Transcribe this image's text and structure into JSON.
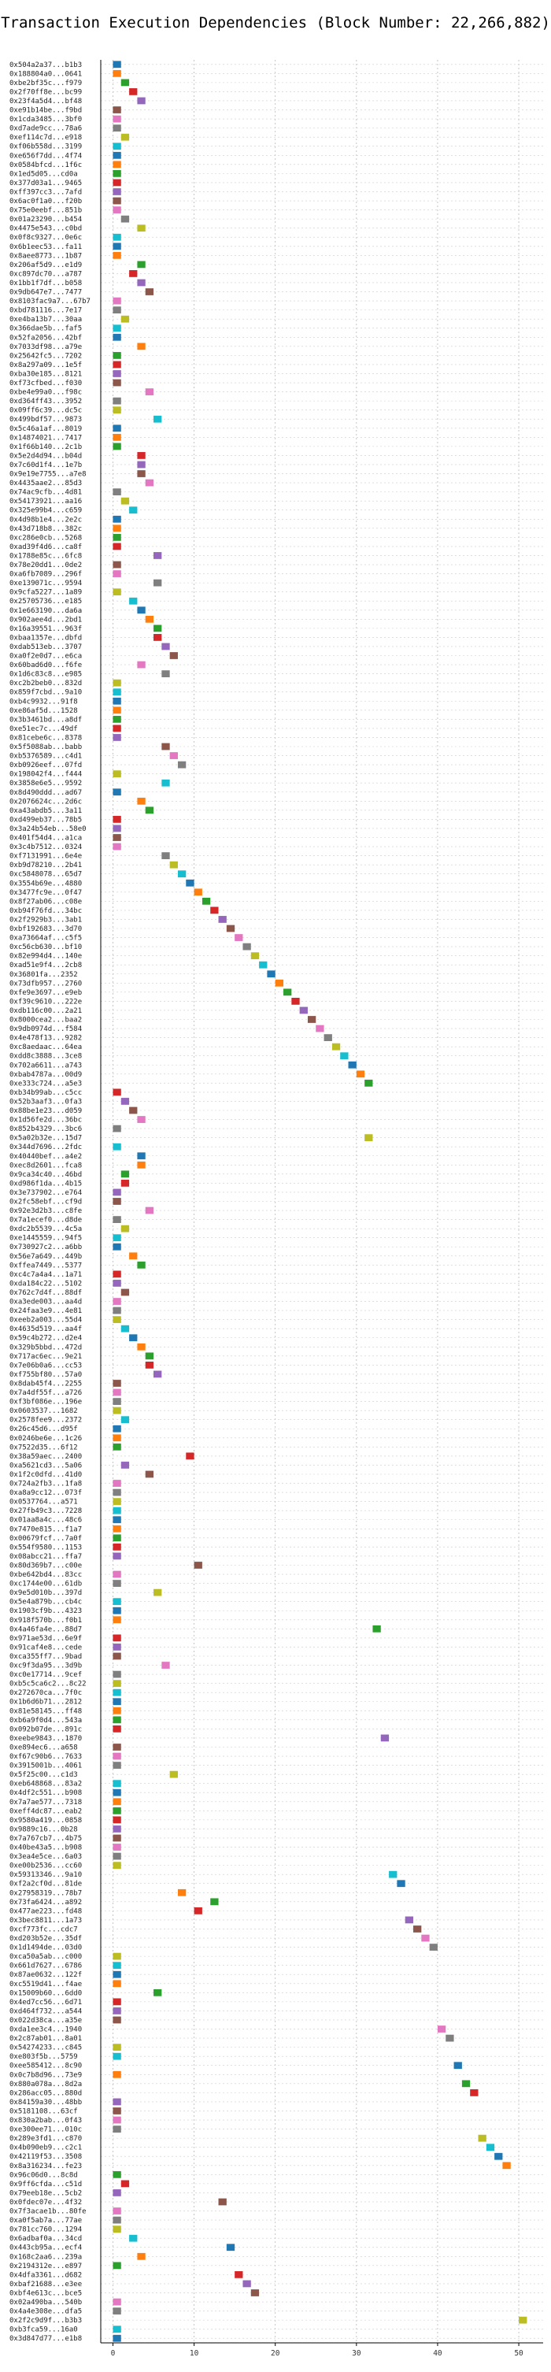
{
  "chart_data": {
    "type": "bar",
    "title": "Transaction Execution Dependencies (Block Number: 22,266,882)",
    "xlabel": "",
    "ylabel": "",
    "xlim": [
      -1.5,
      53
    ],
    "xticks": [
      0,
      10,
      20,
      30,
      40,
      50
    ],
    "grid": true,
    "colors": [
      "#1f77b4",
      "#ff7f0e",
      "#2ca02c",
      "#d62728",
      "#9467bd",
      "#8c564b",
      "#e377c2",
      "#7f7f7f",
      "#bcbd22",
      "#17becf"
    ],
    "transactions": [
      {
        "hash": "0x504a2a37...b1b3",
        "start": 0
      },
      {
        "hash": "0x188804a0...0641",
        "start": 0
      },
      {
        "hash": "0xbe2bf35c...f979",
        "start": 1
      },
      {
        "hash": "0x2f70ff8e...bc99",
        "start": 2
      },
      {
        "hash": "0x23f4a5d4...bf48",
        "start": 3
      },
      {
        "hash": "0xe91b14be...f9bd",
        "start": 0
      },
      {
        "hash": "0x1cda3485...3bf0",
        "start": 0
      },
      {
        "hash": "0xd7ade9cc...78a6",
        "start": 0
      },
      {
        "hash": "0xef114c7d...e918",
        "start": 1
      },
      {
        "hash": "0xf06b558d...3199",
        "start": 0
      },
      {
        "hash": "0xe656f7dd...4f74",
        "start": 0
      },
      {
        "hash": "0x0584bfcd...1f6c",
        "start": 0
      },
      {
        "hash": "0x1ed5d05...cd0a",
        "start": 0
      },
      {
        "hash": "0x377d03a1...9465",
        "start": 0
      },
      {
        "hash": "0xff397cc3...7afd",
        "start": 0
      },
      {
        "hash": "0x6ac0f1a0...f20b",
        "start": 0
      },
      {
        "hash": "0x75e0eebf...851b",
        "start": 0
      },
      {
        "hash": "0x01a23290...b454",
        "start": 1
      },
      {
        "hash": "0x4475e543...c0bd",
        "start": 3
      },
      {
        "hash": "0x0f8c9327...0e6c",
        "start": 0
      },
      {
        "hash": "0x6b1eec53...fa11",
        "start": 0
      },
      {
        "hash": "0x8aee8773...1b87",
        "start": 0
      },
      {
        "hash": "0x206af5d9...e1d9",
        "start": 3
      },
      {
        "hash": "0xc897dc70...a787",
        "start": 2
      },
      {
        "hash": "0x1bb1f7df...b058",
        "start": 3
      },
      {
        "hash": "0x9db647e7...7477",
        "start": 4
      },
      {
        "hash": "0x8103fac9a7...67b7",
        "start": 0
      },
      {
        "hash": "0xbd781116...7e17",
        "start": 0
      },
      {
        "hash": "0xe4ba13b7...30aa",
        "start": 1
      },
      {
        "hash": "0x366dae5b...faf5",
        "start": 0
      },
      {
        "hash": "0x52fa2056...42bf",
        "start": 0
      },
      {
        "hash": "0x7033df98...a79e",
        "start": 3
      },
      {
        "hash": "0x25642fc5...7202",
        "start": 0
      },
      {
        "hash": "0x8a297a09...1e5f",
        "start": 0
      },
      {
        "hash": "0xba30e185...8121",
        "start": 0
      },
      {
        "hash": "0xf73cfbed...f030",
        "start": 0
      },
      {
        "hash": "0xbe4e99a0...f98c",
        "start": 4
      },
      {
        "hash": "0xd364ff43...3952",
        "start": 0
      },
      {
        "hash": "0x09ff6c39...dc5c",
        "start": 0
      },
      {
        "hash": "0x499bdf57...9873",
        "start": 5
      },
      {
        "hash": "0x5c46a1af...8019",
        "start": 0
      },
      {
        "hash": "0x14874021...7417",
        "start": 0
      },
      {
        "hash": "0x1f66b140...2c1b",
        "start": 0
      },
      {
        "hash": "0x5e2d4d94...b04d",
        "start": 3
      },
      {
        "hash": "0x7c60d1f4...1e7b",
        "start": 3
      },
      {
        "hash": "0x9e19e7755...a7e8",
        "start": 3
      },
      {
        "hash": "0x4435aae2...85d3",
        "start": 4
      },
      {
        "hash": "0x74ac9cfb...4d81",
        "start": 0
      },
      {
        "hash": "0x54173921...aa16",
        "start": 1
      },
      {
        "hash": "0x325e99b4...c659",
        "start": 2
      },
      {
        "hash": "0x4d98b1e4...2e2c",
        "start": 0
      },
      {
        "hash": "0x43d718b8...382c",
        "start": 0
      },
      {
        "hash": "0xc286e0cb...5268",
        "start": 0
      },
      {
        "hash": "0xad39f4d6...ca8f",
        "start": 0
      },
      {
        "hash": "0x1788e85c...6fc8",
        "start": 5
      },
      {
        "hash": "0x78e20dd1...0de2",
        "start": 0
      },
      {
        "hash": "0xa6fb7089...296f",
        "start": 0
      },
      {
        "hash": "0xe139071c...9594",
        "start": 5
      },
      {
        "hash": "0x9cfa5227...1a89",
        "start": 0
      },
      {
        "hash": "0x25705736...e185",
        "start": 2
      },
      {
        "hash": "0x1e663190...da6a",
        "start": 3
      },
      {
        "hash": "0x902aee4d...2bd1",
        "start": 4
      },
      {
        "hash": "0x16a39551...963f",
        "start": 5
      },
      {
        "hash": "0xbaa1357e...dbfd",
        "start": 5
      },
      {
        "hash": "0xdab513eb...3707",
        "start": 6
      },
      {
        "hash": "0xa0f2e0d7...e6ca",
        "start": 7
      },
      {
        "hash": "0x60bad6d0...f6fe",
        "start": 3
      },
      {
        "hash": "0x1d6c83c8...e985",
        "start": 6
      },
      {
        "hash": "0xc2b2beb0...832d",
        "start": 0
      },
      {
        "hash": "0x859f7cbd...9a10",
        "start": 0
      },
      {
        "hash": "0xb4c9932...91f8",
        "start": 0
      },
      {
        "hash": "0xe86af5d...1528",
        "start": 0
      },
      {
        "hash": "0x3b3461bd...a8df",
        "start": 0
      },
      {
        "hash": "0xe51ec7c...49df",
        "start": 0
      },
      {
        "hash": "0x81cebe6c...8378",
        "start": 0
      },
      {
        "hash": "0x5f5088ab...babb",
        "start": 6
      },
      {
        "hash": "0xb5376589...c4d1",
        "start": 7
      },
      {
        "hash": "0xb0926eef...07fd",
        "start": 8
      },
      {
        "hash": "0x198042f4...f444",
        "start": 0
      },
      {
        "hash": "0x3858e6e5...9592",
        "start": 6
      },
      {
        "hash": "0x8d490ddd...ad67",
        "start": 0
      },
      {
        "hash": "0x2076624c...2d6c",
        "start": 3
      },
      {
        "hash": "0xa43abdb5...3a11",
        "start": 4
      },
      {
        "hash": "0xd499eb37...78b5",
        "start": 0
      },
      {
        "hash": "0x3a24b54eb...58e0",
        "start": 0
      },
      {
        "hash": "0x401f54d4...a1ca",
        "start": 0
      },
      {
        "hash": "0x3c4b7512...0324",
        "start": 0
      },
      {
        "hash": "0xf7131991...6e4e",
        "start": 6
      },
      {
        "hash": "0xb9d78210...2b41",
        "start": 7
      },
      {
        "hash": "0xc5848078...65d7",
        "start": 8
      },
      {
        "hash": "0x3554b69e...4880",
        "start": 9
      },
      {
        "hash": "0x3477fc9e...0f47",
        "start": 10
      },
      {
        "hash": "0x8f27ab06...c08e",
        "start": 11
      },
      {
        "hash": "0xb94f76fd...34bc",
        "start": 12
      },
      {
        "hash": "0x2f2929b3...3ab1",
        "start": 13
      },
      {
        "hash": "0xbf192683...3d70",
        "start": 14
      },
      {
        "hash": "0xa73664af...c5f5",
        "start": 15
      },
      {
        "hash": "0xc56cb630...bf10",
        "start": 16
      },
      {
        "hash": "0x82e994d4...140e",
        "start": 17
      },
      {
        "hash": "0xad51e9f4...2cb8",
        "start": 18
      },
      {
        "hash": "0x36801fa...2352",
        "start": 19
      },
      {
        "hash": "0x73dfb957...2760",
        "start": 20
      },
      {
        "hash": "0xfe9e3697...e9eb",
        "start": 21
      },
      {
        "hash": "0xf39c9610...222e",
        "start": 22
      },
      {
        "hash": "0xdb116c00...2a21",
        "start": 23
      },
      {
        "hash": "0x8000cea2...baa2",
        "start": 24
      },
      {
        "hash": "0x9db0974d...f584",
        "start": 25
      },
      {
        "hash": "0x4e478f13...9282",
        "start": 26
      },
      {
        "hash": "0xc8aedaac...64ea",
        "start": 27
      },
      {
        "hash": "0xdd8c3888...3ce8",
        "start": 28
      },
      {
        "hash": "0x702a6611...a743",
        "start": 29
      },
      {
        "hash": "0xbab4787a...00d9",
        "start": 30
      },
      {
        "hash": "0xe333c724...a5e3",
        "start": 31
      },
      {
        "hash": "0xb34b99ab...c5cc",
        "start": 0
      },
      {
        "hash": "0x52b3aaf3...0fa3",
        "start": 1
      },
      {
        "hash": "0x88be1e23...d059",
        "start": 2
      },
      {
        "hash": "0x1d56fe2d...36bc",
        "start": 3
      },
      {
        "hash": "0x852b4329...3bc6",
        "start": 0
      },
      {
        "hash": "0x5a02b32e...15d7",
        "start": 31
      },
      {
        "hash": "0x344d7696...2fdc",
        "start": 0
      },
      {
        "hash": "0x40440bef...a4e2",
        "start": 3
      },
      {
        "hash": "0xec8d2601...fca8",
        "start": 3
      },
      {
        "hash": "0x9ca34c40...46bd",
        "start": 1
      },
      {
        "hash": "0xd986f1da...4b15",
        "start": 1
      },
      {
        "hash": "0x3e737902...e764",
        "start": 0
      },
      {
        "hash": "0x2fc58ebf...cf9d",
        "start": 0
      },
      {
        "hash": "0x92e3d2b3...c8fe",
        "start": 4
      },
      {
        "hash": "0x7a1ecef0...d8de",
        "start": 0
      },
      {
        "hash": "0xdc2b5539...4c5a",
        "start": 1
      },
      {
        "hash": "0xe1445559...94f5",
        "start": 0
      },
      {
        "hash": "0x730927c2...a6bb",
        "start": 0
      },
      {
        "hash": "0x56e7a649...449b",
        "start": 2
      },
      {
        "hash": "0xffea7449...5377",
        "start": 3
      },
      {
        "hash": "0xc4c7a4a4...1a71",
        "start": 0
      },
      {
        "hash": "0xda184c22...5102",
        "start": 0
      },
      {
        "hash": "0x762c7d4f...88df",
        "start": 1
      },
      {
        "hash": "0xa3ede003...aa4d",
        "start": 0
      },
      {
        "hash": "0x24faa3e9...4e81",
        "start": 0
      },
      {
        "hash": "0xeeb2a003...55d4",
        "start": 0
      },
      {
        "hash": "0x4635d519...aa4f",
        "start": 1
      },
      {
        "hash": "0x59c4b272...d2e4",
        "start": 2
      },
      {
        "hash": "0x329b5bbd...472d",
        "start": 3
      },
      {
        "hash": "0x717ac6ec...9e21",
        "start": 4
      },
      {
        "hash": "0x7e06b0a6...cc53",
        "start": 4
      },
      {
        "hash": "0xf755bf80...57a0",
        "start": 5
      },
      {
        "hash": "0x8dab45f4...2255",
        "start": 0
      },
      {
        "hash": "0x7a4df55f...a726",
        "start": 0
      },
      {
        "hash": "0xf3bf086e...196e",
        "start": 0
      },
      {
        "hash": "0x0603537...1682",
        "start": 0
      },
      {
        "hash": "0x2578fee9...2372",
        "start": 1
      },
      {
        "hash": "0x26c45d6...d95f",
        "start": 0
      },
      {
        "hash": "0x0246be6e...1c26",
        "start": 0
      },
      {
        "hash": "0x7522d35...6f12",
        "start": 0
      },
      {
        "hash": "0x38a59aec...2400",
        "start": 9
      },
      {
        "hash": "0xa5621cd3...5a06",
        "start": 1
      },
      {
        "hash": "0x1f2c0dfd...41d0",
        "start": 4
      },
      {
        "hash": "0x724a2fb3...1fa8",
        "start": 0
      },
      {
        "hash": "0xa8a9cc12...073f",
        "start": 0
      },
      {
        "hash": "0x0537764...a571",
        "start": 0
      },
      {
        "hash": "0x27fb49c3...7228",
        "start": 0
      },
      {
        "hash": "0x01aa8a4c...48c6",
        "start": 0
      },
      {
        "hash": "0x7470e815...f1a7",
        "start": 0
      },
      {
        "hash": "0x00679fcf...7a0f",
        "start": 0
      },
      {
        "hash": "0x554f9580...1153",
        "start": 0
      },
      {
        "hash": "0x08abcc21...ffa7",
        "start": 0
      },
      {
        "hash": "0x80d369b7...c00e",
        "start": 10
      },
      {
        "hash": "0xbe642bd4...83cc",
        "start": 0
      },
      {
        "hash": "0xc1744e00...61db",
        "start": 0
      },
      {
        "hash": "0x9e5d010b...397d",
        "start": 5
      },
      {
        "hash": "0x5e4a879b...cb4c",
        "start": 0
      },
      {
        "hash": "0x1903cf9b...4323",
        "start": 0
      },
      {
        "hash": "0x918f570b...f0b1",
        "start": 0
      },
      {
        "hash": "0x4a46fa4e...88d7",
        "start": 32
      },
      {
        "hash": "0x971ae53d...6e9f",
        "start": 0
      },
      {
        "hash": "0x91caf4e8...cede",
        "start": 0
      },
      {
        "hash": "0xca355ff7...9bad",
        "start": 0
      },
      {
        "hash": "0xc9f3da95...3d9b",
        "start": 6
      },
      {
        "hash": "0xc0e17714...9cef",
        "start": 0
      },
      {
        "hash": "0xb5c5ca6c2...8c22",
        "start": 0
      },
      {
        "hash": "0x272670ca...7f0c",
        "start": 0
      },
      {
        "hash": "0x1b6d6b71...2812",
        "start": 0
      },
      {
        "hash": "0x81e58145...ff48",
        "start": 0
      },
      {
        "hash": "0xb6a9f0d4...543a",
        "start": 0
      },
      {
        "hash": "0x092b07de...891c",
        "start": 0
      },
      {
        "hash": "0xeebe9843...1870",
        "start": 33
      },
      {
        "hash": "0xe894ec6...a658",
        "start": 0
      },
      {
        "hash": "0xf67c90b6...7633",
        "start": 0
      },
      {
        "hash": "0x3915001b...4061",
        "start": 0
      },
      {
        "hash": "0x5f25c00...c1d3",
        "start": 7
      },
      {
        "hash": "0xeb648868...83a2",
        "start": 0
      },
      {
        "hash": "0x4df2c551...b908",
        "start": 0
      },
      {
        "hash": "0x7a7ae577...7318",
        "start": 0
      },
      {
        "hash": "0xeff4dc87...eab2",
        "start": 0
      },
      {
        "hash": "0x9580a419...0858",
        "start": 0
      },
      {
        "hash": "0x9889c16...0b28",
        "start": 0
      },
      {
        "hash": "0x7a767cb7...4b75",
        "start": 0
      },
      {
        "hash": "0x40be43a5...b908",
        "start": 0
      },
      {
        "hash": "0x3ea4e5ce...6a03",
        "start": 0
      },
      {
        "hash": "0xe00b2536...cc60",
        "start": 0
      },
      {
        "hash": "0x59313346...9a10",
        "start": 34
      },
      {
        "hash": "0xf2a2cf0d...81de",
        "start": 35
      },
      {
        "hash": "0x27958319...78b7",
        "start": 8
      },
      {
        "hash": "0x73fa6424...a892",
        "start": 12
      },
      {
        "hash": "0x477ae223...fd48",
        "start": 10
      },
      {
        "hash": "0x3bec8811...1a73",
        "start": 36
      },
      {
        "hash": "0xcf773fc...cdc7",
        "start": 37
      },
      {
        "hash": "0xd203b52e...35df",
        "start": 38
      },
      {
        "hash": "0x1d1494de...03d0",
        "start": 39
      },
      {
        "hash": "0xca50a5ab...c000",
        "start": 0
      },
      {
        "hash": "0x661d7627...6786",
        "start": 0
      },
      {
        "hash": "0x87ae0632...122f",
        "start": 0
      },
      {
        "hash": "0xc5519d41...f4ae",
        "start": 0
      },
      {
        "hash": "0x15009b60...6dd0",
        "start": 5
      },
      {
        "hash": "0x4ed7cc56...6d71",
        "start": 0
      },
      {
        "hash": "0xd464f732...a544",
        "start": 0
      },
      {
        "hash": "0x022d38ca...a35e",
        "start": 0
      },
      {
        "hash": "0xda1ee3c4...1940",
        "start": 40
      },
      {
        "hash": "0x2c87ab01...8a01",
        "start": 41
      },
      {
        "hash": "0x54274233...c845",
        "start": 0
      },
      {
        "hash": "0xe803f5b...5759",
        "start": 0
      },
      {
        "hash": "0xee585412...8c90",
        "start": 42
      },
      {
        "hash": "0x0c7b8d96...73e9",
        "start": 0
      },
      {
        "hash": "0x880a078a...8d2a",
        "start": 43
      },
      {
        "hash": "0x286acc05...880d",
        "start": 44
      },
      {
        "hash": "0x84159a30...48bb",
        "start": 0
      },
      {
        "hash": "0x5181108...63cf",
        "start": 0
      },
      {
        "hash": "0x830a2bab...0f43",
        "start": 0
      },
      {
        "hash": "0xe300ee71...010c",
        "start": 0
      },
      {
        "hash": "0x289e3fd1...c870",
        "start": 45
      },
      {
        "hash": "0x4b090eb9...c2c1",
        "start": 46
      },
      {
        "hash": "0x42119f53...3508",
        "start": 47
      },
      {
        "hash": "0x8a316234...fe23",
        "start": 48
      },
      {
        "hash": "0x96c06d0...8c8d",
        "start": 0
      },
      {
        "hash": "0x9ff6cfda...c51d",
        "start": 1
      },
      {
        "hash": "0x79eeb18e...5cb2",
        "start": 0
      },
      {
        "hash": "0x0fdec07e...4f32",
        "start": 13
      },
      {
        "hash": "0x7f3acae1b...80fe",
        "start": 0
      },
      {
        "hash": "0xa0f5ab7a...77ae",
        "start": 0
      },
      {
        "hash": "0x781cc760...1294",
        "start": 0
      },
      {
        "hash": "0x6adbaf0a...34cd",
        "start": 2
      },
      {
        "hash": "0x443cb95a...ecf4",
        "start": 14
      },
      {
        "hash": "0x168c2aa6...239a",
        "start": 3
      },
      {
        "hash": "0x2194312e...e897",
        "start": 0
      },
      {
        "hash": "0x4dfa3361...d682",
        "start": 15
      },
      {
        "hash": "0xbaf21688...e3ee",
        "start": 16
      },
      {
        "hash": "0xbf4e613c...bce5",
        "start": 17
      },
      {
        "hash": "0x02a490ba...540b",
        "start": 0
      },
      {
        "hash": "0x4a4e308e...dfa5",
        "start": 0
      },
      {
        "hash": "0x2f2c9d9f...b3b3",
        "start": 50
      },
      {
        "hash": "0xb3fca59...16a0",
        "start": 0
      },
      {
        "hash": "0x3d847d77...e1b8",
        "start": 0
      }
    ]
  }
}
